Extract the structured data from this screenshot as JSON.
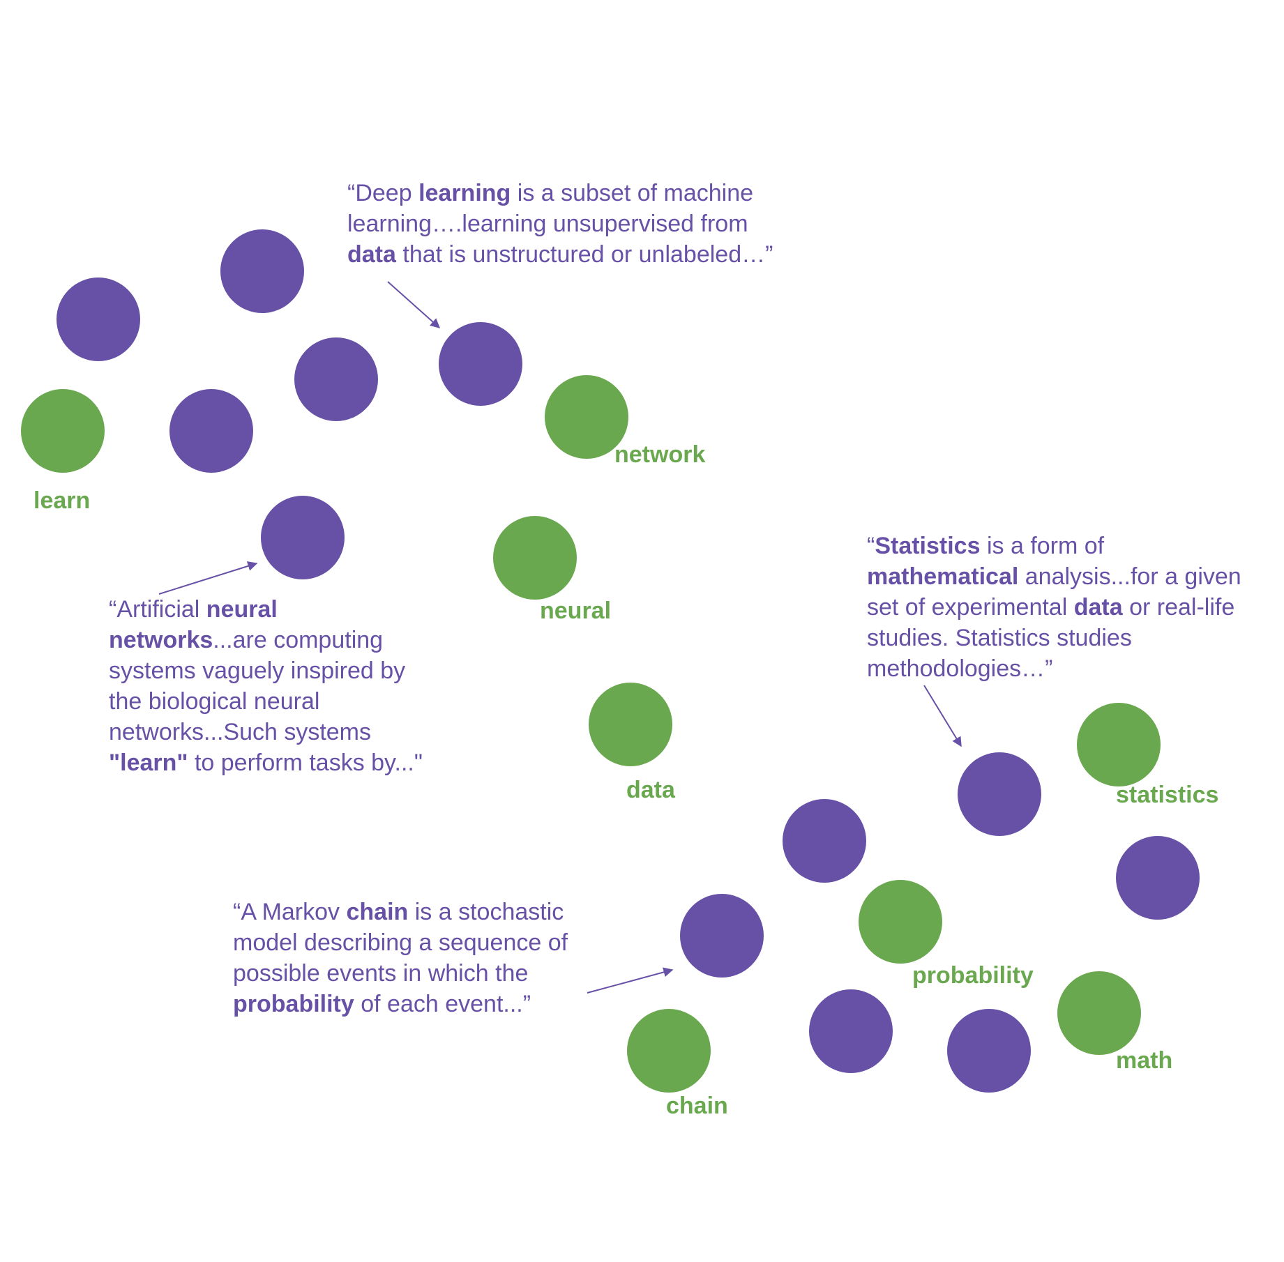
{
  "colors": {
    "purple": "#6751a6",
    "green": "#6aa84f"
  },
  "words": {
    "learn": "learn",
    "network": "network",
    "neural": "neural",
    "data": "data",
    "statistics": "statistics",
    "probability": "probability",
    "math": "math",
    "chain": "chain"
  },
  "quotes": {
    "deep_learning": [
      [
        "“Deep ",
        "learning",
        " is a subset of machine"
      ],
      [
        "learning….learning unsupervised from"
      ],
      [
        "",
        "data",
        " that is unstructured or unlabeled…”"
      ]
    ],
    "neural_networks": [
      [
        "“Artificial ",
        "neural"
      ],
      [
        "",
        "networks",
        "...are computing"
      ],
      [
        "systems vaguely inspired by"
      ],
      [
        "the biological neural"
      ],
      [
        "networks...Such systems"
      ],
      [
        "",
        "\"learn\"",
        " to perform tasks by...\""
      ]
    ],
    "statistics": [
      [
        "“",
        "Statistics",
        " is a form of"
      ],
      [
        "",
        "mathematical",
        " analysis...for a given"
      ],
      [
        "set of experimental ",
        "data",
        " or real-life"
      ],
      [
        "studies. Statistics studies"
      ],
      [
        "methodologies…”"
      ]
    ],
    "markov": [
      [
        "“A Markov ",
        "chain",
        " is a stochastic"
      ],
      [
        "model describing a sequence of"
      ],
      [
        "possible events in which the"
      ],
      [
        "",
        "probability",
        " of each event...”"
      ]
    ]
  }
}
